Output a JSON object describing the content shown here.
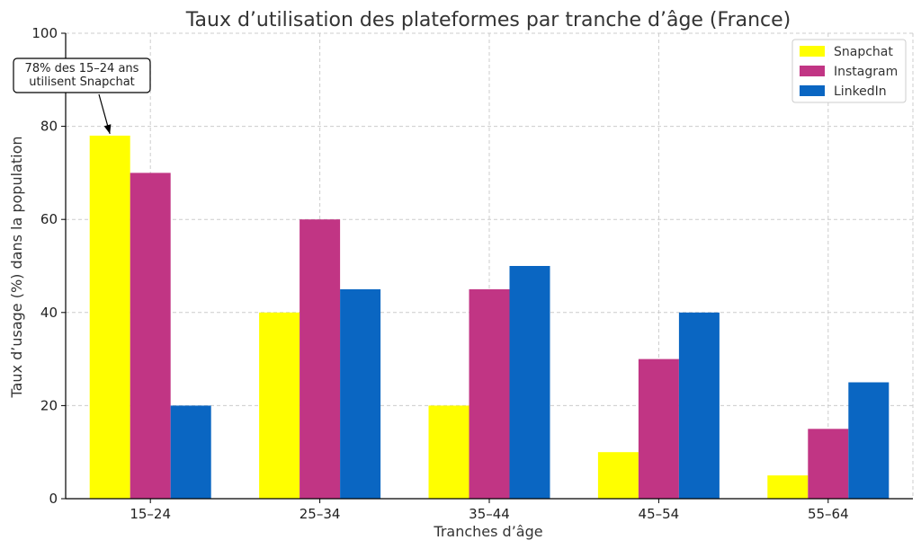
{
  "chart_data": {
    "type": "bar",
    "title": "Taux d’utilisation des plateformes par tranche d’âge (France)",
    "xlabel": "Tranches d’âge",
    "ylabel": "Taux d’usage (%) dans la population",
    "categories": [
      "15–24",
      "25–34",
      "35–44",
      "45–54",
      "55–64"
    ],
    "series": [
      {
        "name": "Snapchat",
        "color": "#ffff00",
        "values": [
          78,
          40,
          20,
          10,
          5
        ]
      },
      {
        "name": "Instagram",
        "color": "#c13584",
        "values": [
          70,
          60,
          45,
          30,
          15
        ]
      },
      {
        "name": "LinkedIn",
        "color": "#0a66c2",
        "values": [
          20,
          45,
          50,
          40,
          25
        ]
      }
    ],
    "ylim": [
      0,
      100
    ],
    "yticks": [
      0,
      20,
      40,
      60,
      80,
      100
    ],
    "grid": true,
    "legend_position": "top-right",
    "annotation": {
      "lines": [
        "78% des 15–24 ans",
        "utilisent Snapchat"
      ],
      "target_category": "15–24",
      "target_series": "Snapchat",
      "target_value": 78
    }
  }
}
